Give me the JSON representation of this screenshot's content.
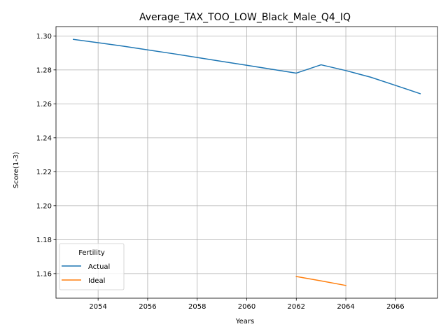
{
  "chart_data": {
    "type": "line",
    "title": "Average_TAX_TOO_LOW_Black_Male_Q4_IQ",
    "xlabel": "Years",
    "ylabel": "Score(1-3)",
    "xlim": [
      2052.3,
      2067.7
    ],
    "ylim": [
      1.1455,
      1.3055
    ],
    "xticks": [
      2054,
      2056,
      2058,
      2060,
      2062,
      2064,
      2066
    ],
    "yticks": [
      1.16,
      1.18,
      1.2,
      1.22,
      1.24,
      1.26,
      1.28,
      1.3
    ],
    "grid": true,
    "legend": {
      "title": "Fertility",
      "position": "lower-left"
    },
    "series": [
      {
        "name": "Actual",
        "color": "#1f77b4",
        "x": [
          2053,
          2054,
          2055,
          2056,
          2057,
          2058,
          2059,
          2060,
          2061,
          2062,
          2063,
          2064,
          2065,
          2066,
          2067
        ],
        "y": [
          1.298,
          1.296,
          1.294,
          1.2918,
          1.2896,
          1.2873,
          1.285,
          1.2827,
          1.2804,
          1.2781,
          1.283,
          1.2796,
          1.2757,
          1.2709,
          1.266
        ]
      },
      {
        "name": "Ideal",
        "color": "#ff7f0e",
        "x": [
          2062,
          2063,
          2064
        ],
        "y": [
          1.1583,
          1.1557,
          1.153
        ]
      }
    ]
  }
}
